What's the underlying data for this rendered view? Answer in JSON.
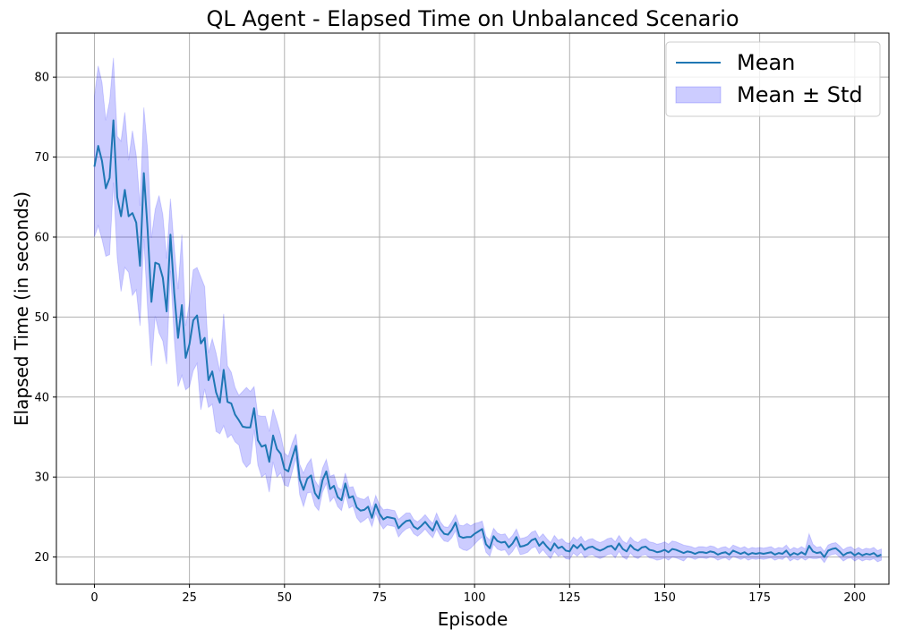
{
  "chart_data": {
    "type": "line",
    "title": "QL Agent - Elapsed Time on Unbalanced Scenario",
    "xlabel": "Episode",
    "ylabel": "Elapsed Time (in seconds)",
    "xlim": [
      -10,
      209
    ],
    "ylim": [
      16.6,
      85.5
    ],
    "xticks": [
      0,
      25,
      50,
      75,
      100,
      125,
      150,
      175,
      200
    ],
    "yticks": [
      20,
      30,
      40,
      50,
      60,
      70,
      80
    ],
    "grid": true,
    "legend_position": "top-right",
    "colors": {
      "mean_line": "#1f77b4",
      "std_fill": "#0000ff",
      "std_fill_opacity": 0.2,
      "grid": "#b0b0b0"
    },
    "series": [
      {
        "name": "Mean",
        "kind": "line",
        "x_start": 0,
        "x_step": 1,
        "values": [
          68.8,
          71.4,
          69.5,
          66.1,
          67.4,
          74.6,
          65.0,
          62.6,
          65.9,
          62.6,
          63.0,
          61.8,
          56.4,
          68.0,
          60.9,
          51.9,
          56.8,
          56.6,
          54.9,
          50.7,
          60.3,
          53.0,
          47.4,
          51.5,
          44.9,
          46.6,
          49.6,
          50.2,
          46.7,
          47.4,
          42.1,
          43.2,
          40.6,
          39.3,
          43.4,
          39.4,
          39.2,
          37.8,
          37.1,
          36.3,
          36.2,
          36.2,
          38.6,
          34.6,
          33.8,
          34.0,
          31.9,
          35.2,
          33.5,
          32.9,
          31.0,
          30.7,
          32.4,
          33.9,
          29.7,
          28.4,
          29.8,
          30.2,
          28.0,
          27.3,
          29.6,
          30.7,
          28.5,
          28.9,
          27.5,
          27.1,
          29.2,
          27.4,
          27.6,
          26.2,
          25.8,
          25.9,
          26.3,
          24.9,
          26.6,
          25.4,
          24.7,
          25.0,
          24.9,
          24.8,
          23.6,
          24.1,
          24.5,
          24.6,
          23.8,
          23.5,
          23.9,
          24.4,
          23.8,
          23.3,
          24.5,
          23.5,
          22.9,
          22.8,
          23.4,
          24.3,
          22.6,
          22.4,
          22.5,
          22.5,
          22.9,
          23.2,
          23.5,
          21.6,
          21.1,
          22.6,
          22.0,
          21.8,
          21.9,
          21.2,
          21.7,
          22.5,
          21.3,
          21.4,
          21.6,
          22.1,
          22.3,
          21.4,
          21.9,
          21.3,
          20.8,
          21.7,
          21.1,
          21.3,
          20.8,
          20.7,
          21.5,
          21.1,
          21.6,
          20.9,
          21.2,
          21.3,
          21.0,
          20.8,
          21.0,
          21.3,
          21.4,
          20.9,
          21.7,
          21.0,
          20.7,
          21.5,
          21.0,
          20.8,
          21.2,
          21.3,
          20.9,
          20.8,
          20.6,
          20.7,
          20.9,
          20.6,
          21.0,
          20.9,
          20.7,
          20.5,
          20.7,
          20.6,
          20.4,
          20.6,
          20.6,
          20.5,
          20.7,
          20.6,
          20.3,
          20.5,
          20.6,
          20.3,
          20.8,
          20.6,
          20.4,
          20.6,
          20.3,
          20.5,
          20.4,
          20.5,
          20.4,
          20.5,
          20.6,
          20.3,
          20.5,
          20.4,
          20.8,
          20.2,
          20.5,
          20.3,
          20.6,
          20.3,
          21.4,
          20.7,
          20.5,
          20.6,
          20.0,
          20.8,
          21.0,
          21.1,
          20.7,
          20.2,
          20.5,
          20.6,
          20.2,
          20.5,
          20.2,
          20.4,
          20.3,
          20.5,
          20.1,
          20.3
        ]
      },
      {
        "name": "Mean ± Std",
        "kind": "band",
        "x_start": 0,
        "x_step": 1,
        "upper": [
          77.6,
          81.4,
          79.3,
          74.6,
          77.0,
          82.4,
          72.6,
          72.0,
          75.6,
          69.6,
          73.3,
          70.2,
          63.9,
          76.2,
          70.9,
          59.9,
          63.5,
          65.2,
          62.8,
          57.3,
          64.8,
          58.7,
          53.5,
          60.3,
          48.9,
          51.9,
          55.9,
          56.2,
          55.0,
          53.8,
          45.5,
          47.3,
          45.5,
          43.2,
          50.4,
          43.9,
          43.1,
          41.2,
          40.2,
          40.7,
          41.2,
          40.7,
          41.3,
          37.7,
          37.6,
          37.6,
          35.7,
          38.5,
          37.0,
          35.3,
          33.0,
          32.6,
          34.2,
          35.4,
          31.6,
          30.5,
          31.6,
          32.3,
          29.6,
          28.8,
          31.1,
          32.2,
          30.1,
          30.3,
          28.7,
          28.4,
          30.5,
          28.7,
          28.8,
          27.5,
          27.3,
          27.2,
          27.6,
          26.0,
          27.7,
          26.5,
          25.9,
          26.0,
          25.9,
          25.8,
          24.7,
          25.1,
          25.5,
          25.5,
          24.7,
          24.4,
          24.8,
          25.3,
          24.7,
          24.2,
          25.5,
          24.4,
          23.8,
          23.7,
          24.4,
          25.3,
          24.0,
          23.9,
          24.2,
          23.9,
          24.2,
          24.3,
          24.5,
          22.6,
          22.1,
          23.6,
          23.0,
          22.8,
          22.9,
          22.2,
          22.7,
          23.5,
          22.3,
          22.4,
          22.6,
          23.1,
          23.3,
          22.4,
          22.9,
          22.3,
          21.8,
          22.7,
          22.1,
          22.3,
          21.8,
          21.7,
          22.5,
          22.1,
          22.6,
          21.9,
          22.2,
          22.3,
          22.0,
          21.8,
          22.0,
          22.3,
          22.4,
          21.9,
          22.7,
          22.0,
          21.7,
          22.5,
          22.0,
          21.8,
          22.2,
          22.3,
          21.9,
          21.8,
          21.6,
          21.7,
          21.9,
          21.6,
          22.0,
          21.9,
          21.7,
          21.5,
          21.4,
          21.3,
          21.1,
          21.3,
          21.3,
          21.2,
          21.4,
          21.3,
          21.0,
          21.2,
          21.3,
          21.0,
          21.5,
          21.3,
          21.1,
          21.3,
          21.0,
          21.2,
          21.1,
          21.2,
          21.1,
          21.2,
          21.3,
          21.0,
          21.2,
          21.1,
          21.5,
          20.9,
          21.2,
          21.0,
          21.3,
          21.0,
          22.9,
          21.6,
          21.2,
          21.3,
          20.7,
          21.5,
          21.7,
          21.8,
          21.4,
          20.9,
          21.2,
          21.3,
          20.9,
          21.2,
          20.9,
          21.1,
          21.0,
          21.2,
          20.8,
          21.0
        ],
        "lower": [
          60.0,
          61.4,
          59.7,
          57.6,
          57.8,
          66.8,
          57.4,
          53.2,
          56.2,
          55.6,
          52.7,
          53.4,
          48.9,
          59.8,
          50.9,
          43.9,
          50.1,
          48.0,
          47.0,
          44.1,
          55.8,
          47.3,
          41.3,
          42.7,
          40.9,
          41.3,
          43.3,
          44.2,
          38.4,
          41.0,
          38.7,
          39.1,
          35.7,
          35.4,
          36.4,
          34.9,
          35.3,
          34.4,
          34.0,
          31.9,
          31.2,
          31.7,
          35.9,
          31.5,
          30.0,
          30.4,
          28.1,
          31.9,
          30.0,
          30.5,
          29.0,
          28.8,
          30.6,
          32.4,
          27.8,
          26.3,
          28.0,
          28.1,
          26.4,
          25.8,
          28.1,
          29.2,
          26.9,
          27.5,
          26.3,
          25.8,
          27.9,
          26.1,
          26.4,
          24.9,
          24.3,
          24.6,
          25.0,
          23.8,
          25.5,
          24.3,
          23.5,
          24.0,
          23.9,
          23.8,
          22.5,
          23.1,
          23.5,
          23.7,
          22.9,
          22.6,
          23.0,
          23.5,
          22.9,
          22.4,
          23.5,
          22.6,
          22.0,
          21.9,
          22.4,
          23.3,
          21.2,
          20.9,
          20.8,
          21.1,
          21.6,
          22.1,
          22.5,
          20.6,
          20.1,
          21.6,
          21.0,
          20.8,
          20.9,
          20.2,
          20.7,
          21.5,
          20.3,
          20.4,
          20.6,
          21.1,
          21.3,
          20.4,
          20.9,
          20.3,
          19.8,
          20.7,
          20.1,
          20.3,
          19.8,
          19.7,
          20.5,
          20.1,
          20.6,
          19.9,
          20.2,
          20.3,
          20.0,
          19.8,
          20.0,
          20.3,
          20.4,
          19.9,
          20.7,
          20.0,
          19.7,
          20.5,
          20.0,
          19.8,
          20.2,
          20.3,
          19.9,
          19.8,
          19.6,
          19.7,
          19.9,
          19.6,
          20.0,
          19.9,
          19.7,
          19.5,
          20.0,
          19.9,
          19.7,
          19.9,
          19.9,
          19.8,
          20.0,
          19.9,
          19.6,
          19.8,
          19.9,
          19.6,
          20.1,
          19.9,
          19.7,
          19.9,
          19.6,
          19.8,
          19.7,
          19.8,
          19.7,
          19.8,
          19.9,
          19.6,
          19.8,
          19.7,
          20.1,
          19.5,
          19.8,
          19.6,
          19.9,
          19.6,
          19.9,
          19.8,
          19.8,
          19.9,
          19.3,
          20.1,
          20.3,
          20.4,
          20.0,
          19.5,
          19.8,
          19.9,
          19.5,
          19.8,
          19.5,
          19.7,
          19.6,
          19.8,
          19.4,
          19.6
        ]
      }
    ]
  }
}
